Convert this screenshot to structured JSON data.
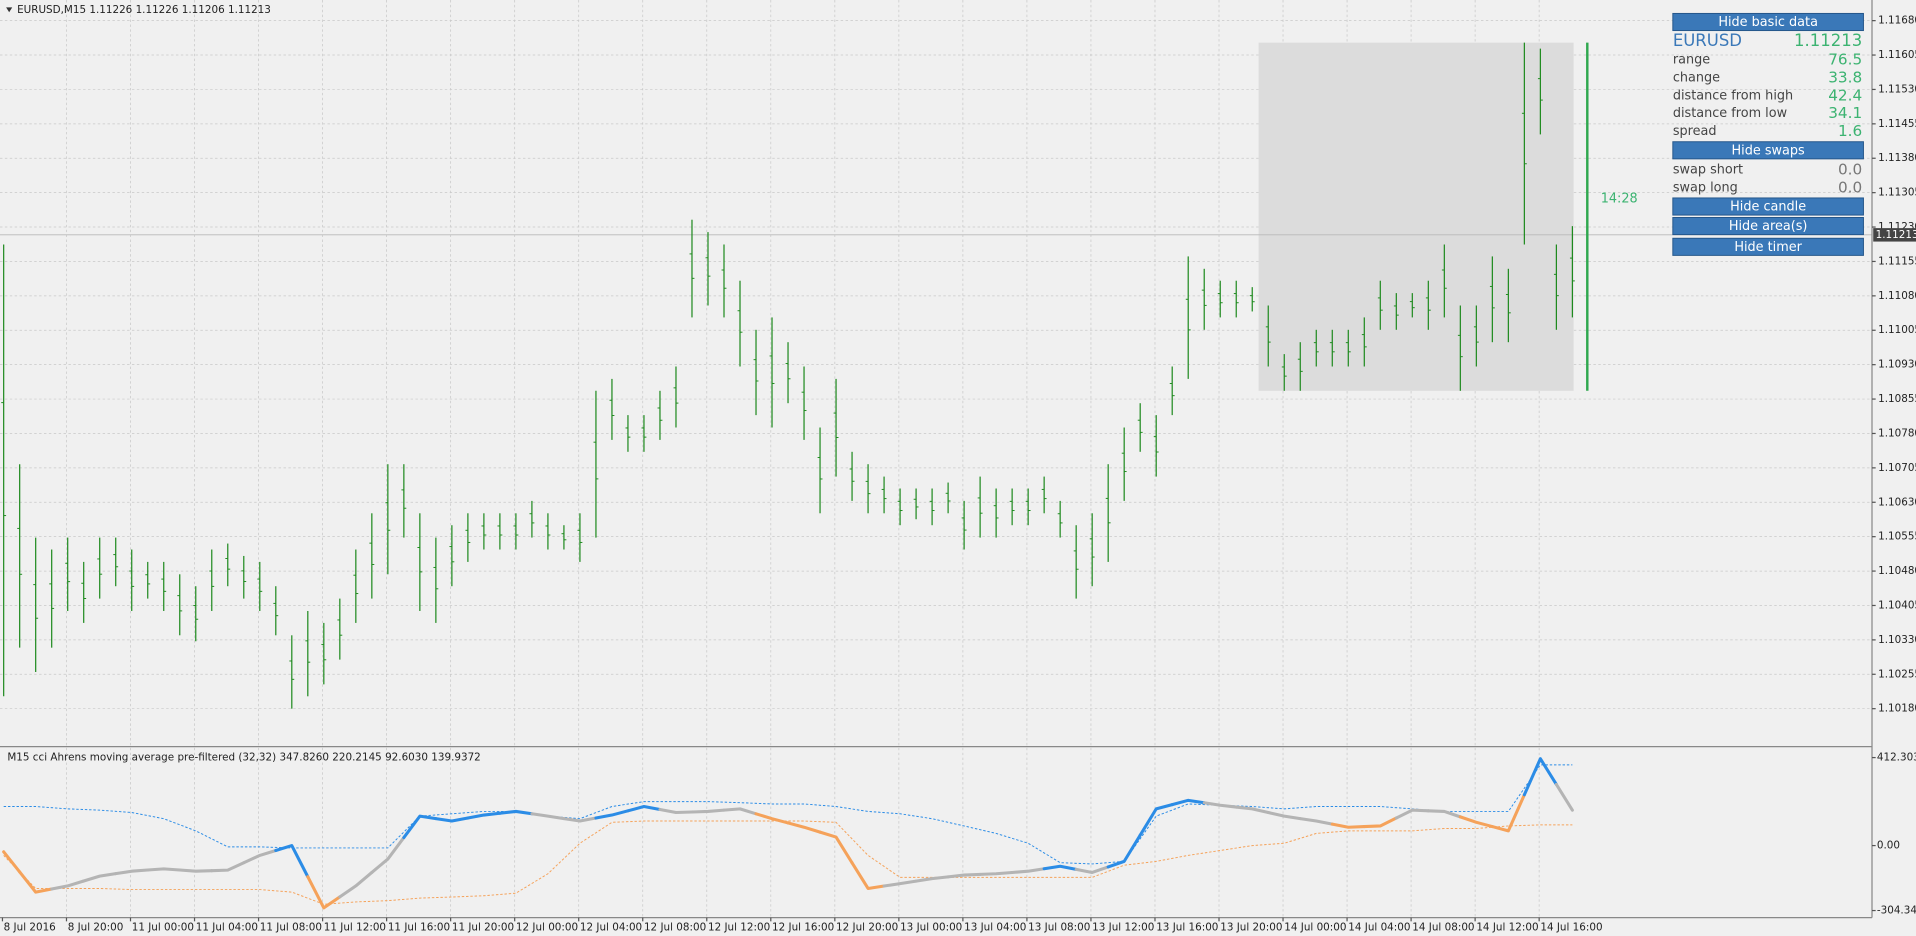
{
  "header": {
    "symbol_line": "EURUSD,M15  1.11226 1.11226 1.11206 1.11213"
  },
  "chart_data": [
    {
      "type": "ohlc",
      "color": "#1f8a1f",
      "grid": true,
      "categories": [
        "8 Jul 2016",
        "8 Jul 20:00",
        "11 Jul 00:00",
        "11 Jul 04:00",
        "11 Jul 08:00",
        "11 Jul 12:00",
        "11 Jul 16:00",
        "11 Jul 20:00",
        "12 Jul 00:00",
        "12 Jul 04:00",
        "12 Jul 08:00",
        "12 Jul 12:00",
        "12 Jul 16:00",
        "12 Jul 20:00",
        "13 Jul 00:00",
        "13 Jul 04:00",
        "13 Jul 08:00",
        "13 Jul 12:00",
        "13 Jul 16:00",
        "13 Jul 20:00",
        "14 Jul 00:00",
        "14 Jul 04:00",
        "14 Jul 08:00",
        "14 Jul 12:00",
        "14 Jul 16:00"
      ],
      "ylim": [
        1.101,
        1.11725
      ],
      "yticks": [
        {
          "value": 1.1168,
          "label": "1.11680"
        },
        1.11605,
        {
          "value": 1.1153,
          "label": "1.11530"
        },
        1.11455,
        {
          "value": 1.1138,
          "label": "1.11380"
        },
        1.11305,
        {
          "value": 1.1123,
          "label": "1.11230"
        },
        1.11155,
        {
          "value": 1.1108,
          "label": "1.11080"
        },
        1.11005,
        {
          "value": 1.1093,
          "label": "1.10930"
        },
        1.10855,
        {
          "value": 1.1078,
          "label": "1.10780"
        },
        1.10705,
        {
          "value": 1.1063,
          "label": "1.10630"
        },
        1.10555,
        {
          "value": 1.1048,
          "label": "1.10480"
        },
        1.10405,
        {
          "value": 1.1033,
          "label": "1.10330"
        },
        1.10255,
        {
          "value": 1.1018,
          "label": "1.10180"
        }
      ],
      "bid": 1.11213,
      "highs": [
        1.11192,
        1.10713,
        1.10553,
        1.10527,
        1.10553,
        1.105,
        1.10553,
        1.10553,
        1.10527,
        1.105,
        1.105,
        1.10473,
        1.10447,
        1.10527,
        1.1054,
        1.10513,
        1.105,
        1.10447,
        1.1034,
        1.10393,
        1.10367,
        1.1042,
        1.10527,
        1.10606,
        1.10713,
        1.10713,
        1.10606,
        1.10553,
        1.1058,
        1.10606,
        1.10606,
        1.10606,
        1.10606,
        1.10633,
        1.10606,
        1.1058,
        1.10606,
        1.10873,
        1.10899,
        1.1082,
        1.1082,
        1.10873,
        1.10926,
        1.11246,
        1.11219,
        1.11192,
        1.11113,
        1.11006,
        1.11033,
        1.10979,
        1.10926,
        1.10793,
        1.10899,
        1.1074,
        1.10713,
        1.10686,
        1.1066,
        1.1066,
        1.1066,
        1.10673,
        1.10633,
        1.10686,
        1.1066,
        1.1066,
        1.1066,
        1.10686,
        1.10633,
        1.1058,
        1.10606,
        1.10713,
        1.10793,
        1.10846,
        1.1082,
        1.10926,
        1.11166,
        1.11139,
        1.11113,
        1.11113,
        1.11099,
        1.11059,
        1.10953,
        1.10979,
        1.11006,
        1.11006,
        1.11006,
        1.11033,
        1.11113,
        1.11086,
        1.11086,
        1.11113,
        1.11192,
        1.11059,
        1.11059,
        1.11166,
        1.11139,
        1.11632,
        1.11619,
        1.11192,
        1.11232
      ],
      "lows": [
        1.10207,
        1.10313,
        1.1026,
        1.10313,
        1.10393,
        1.10367,
        1.1042,
        1.10447,
        1.10393,
        1.1042,
        1.10393,
        1.1034,
        1.10327,
        1.10393,
        1.10447,
        1.1042,
        1.10393,
        1.1034,
        1.1018,
        1.10207,
        1.10233,
        1.10287,
        1.10367,
        1.1042,
        1.10473,
        1.10553,
        1.10393,
        1.10367,
        1.10447,
        1.105,
        1.10527,
        1.10527,
        1.10527,
        1.10553,
        1.10527,
        1.10527,
        1.105,
        1.10553,
        1.10766,
        1.1074,
        1.1074,
        1.10766,
        1.10793,
        1.11033,
        1.11059,
        1.11033,
        1.10926,
        1.1082,
        1.10793,
        1.10846,
        1.10766,
        1.10606,
        1.10686,
        1.10633,
        1.10606,
        1.10606,
        1.1058,
        1.10593,
        1.1058,
        1.10606,
        1.10527,
        1.10553,
        1.10553,
        1.1058,
        1.1058,
        1.10606,
        1.10553,
        1.1042,
        1.10447,
        1.105,
        1.10633,
        1.1074,
        1.10686,
        1.1082,
        1.10899,
        1.11006,
        1.11033,
        1.11033,
        1.11046,
        1.10926,
        1.10873,
        1.10873,
        1.10926,
        1.10926,
        1.10926,
        1.10926,
        1.11006,
        1.11006,
        1.11033,
        1.11006,
        1.11033,
        1.10873,
        1.10926,
        1.10979,
        1.10979,
        1.11192,
        1.11432,
        1.11006,
        1.11033
      ],
      "area": {
        "high": 1.11632,
        "low": 1.10873,
        "color": "#dcdcdc"
      },
      "day_candle": {
        "high": 1.11632,
        "low": 1.10873,
        "color": "#2fa84f"
      },
      "timer": "14:28"
    },
    {
      "type": "line",
      "title": "M15 cci Ahrens moving average pre-filtered (32,32) 347.8260 220.2145 92.6030 139.9372",
      "ylim": [
        -332,
        458
      ],
      "yticks": [
        412.3039,
        {
          "value": 0,
          "label": "0.00"
        },
        -304.3458
      ],
      "series": [
        {
          "color": "#2b8ce6",
          "dashed": true,
          "values": [
            183,
            183,
            172,
            166,
            155,
            126,
            69,
            -6,
            -6,
            -11,
            -11,
            -11,
            -11,
            138,
            149,
            160,
            160,
            138,
            126,
            183,
            206,
            206,
            206,
            201,
            195,
            195,
            183,
            160,
            149,
            126,
            92,
            57,
            11,
            -80,
            -86,
            -74,
            138,
            195,
            189,
            183,
            172,
            183,
            183,
            183,
            172,
            160,
            160,
            160,
            378,
            378
          ]
        },
        {
          "color": "#f5a25a",
          "dashed": true,
          "values": [
            -46,
            -201,
            -201,
            -201,
            -206,
            -206,
            -206,
            -206,
            -206,
            -218,
            -275,
            -264,
            -258,
            -246,
            -241,
            -235,
            -223,
            -132,
            11,
            109,
            115,
            115,
            115,
            115,
            115,
            115,
            109,
            -46,
            -149,
            -149,
            -149,
            -149,
            -149,
            -149,
            -149,
            -92,
            -74,
            -46,
            -23,
            0,
            11,
            57,
            69,
            69,
            69,
            80,
            80,
            92,
            97,
            97
          ]
        },
        {
          "color": "#b4b4b4",
          "width": 2.5,
          "values": [
            -29,
            -218,
            -189,
            -143,
            -120,
            -109,
            -120,
            -115,
            -46,
            0,
            -292,
            -189,
            -63,
            138,
            115,
            143,
            160,
            138,
            115,
            143,
            183,
            155,
            160,
            172,
            126,
            86,
            40,
            -201,
            -178,
            -155,
            -138,
            -132,
            -120,
            -97,
            -126,
            -74,
            172,
            212,
            189,
            172,
            138,
            115,
            86,
            92,
            166,
            160,
            109,
            69,
            407,
            166
          ],
          "segment_colors": [
            "#f5a25a",
            "#f5a25a",
            "#b4b4b4",
            "#b4b4b4",
            "#b4b4b4",
            "#b4b4b4",
            "#b4b4b4",
            "#b4b4b4",
            "#b4b4b4",
            "#2b8ce6",
            "#f5a25a",
            "#b4b4b4",
            "#b4b4b4",
            "#2b8ce6",
            "#2b8ce6",
            "#2b8ce6",
            "#2b8ce6",
            "#b4b4b4",
            "#b4b4b4",
            "#2b8ce6",
            "#2b8ce6",
            "#b4b4b4",
            "#b4b4b4",
            "#b4b4b4",
            "#f5a25a",
            "#f5a25a",
            "#f5a25a",
            "#f5a25a",
            "#b4b4b4",
            "#b4b4b4",
            "#b4b4b4",
            "#b4b4b4",
            "#b4b4b4",
            "#2b8ce6",
            "#b4b4b4",
            "#2b8ce6",
            "#2b8ce6",
            "#2b8ce6",
            "#b4b4b4",
            "#b4b4b4",
            "#b4b4b4",
            "#b4b4b4",
            "#f5a25a",
            "#f5a25a",
            "#b4b4b4",
            "#b4b4b4",
            "#f5a25a",
            "#f5a25a",
            "#2b8ce6",
            "#b4b4b4"
          ]
        }
      ]
    }
  ],
  "panel": {
    "hide_basic": "Hide basic data",
    "symbol": "EURUSD",
    "price": "1.11213",
    "rows": [
      {
        "label": "range",
        "value": "76.5"
      },
      {
        "label": "change",
        "value": "33.8"
      },
      {
        "label": "distance from high",
        "value": "42.4"
      },
      {
        "label": "distance from low",
        "value": "34.1"
      },
      {
        "label": "spread",
        "value": "1.6"
      }
    ],
    "hide_swaps": "Hide swaps",
    "swaps": [
      {
        "label": "swap short",
        "value": "0.0"
      },
      {
        "label": "swap long",
        "value": "0.0"
      }
    ],
    "hide_candle": "Hide candle",
    "hide_areas": "Hide area(s)",
    "hide_timer": "Hide timer"
  }
}
